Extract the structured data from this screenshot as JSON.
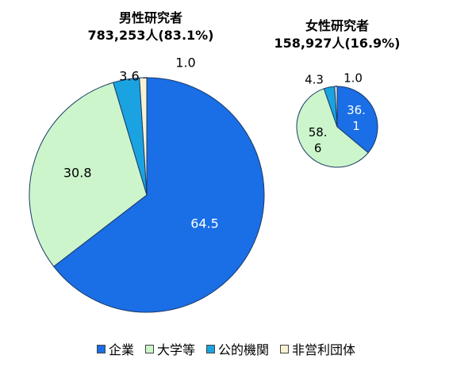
{
  "chart_data": [
    {
      "type": "pie",
      "title": "男性研究者",
      "subtitle": "783,253人(83.1%)",
      "categories": [
        "企業",
        "大学等",
        "公的機関",
        "非営利団体"
      ],
      "values": [
        64.5,
        30.8,
        3.6,
        1.0
      ],
      "labels": [
        "64.5",
        "30.8",
        "3.6",
        "1.0"
      ],
      "start": "top",
      "direction": "clockwise"
    },
    {
      "type": "pie",
      "title": "女性研究者",
      "subtitle": "158,927人(16.9%)",
      "categories": [
        "企業",
        "大学等",
        "公的機関",
        "非営利団体"
      ],
      "values": [
        36.1,
        58.6,
        4.3,
        1.0
      ],
      "labels": [
        "36.\n1",
        "58.\n6",
        "4.3",
        "1.0"
      ],
      "start": "top",
      "direction": "clockwise"
    }
  ],
  "legend": {
    "placement": "bottom",
    "items": [
      {
        "label": "企業",
        "color": "#1a6ee6"
      },
      {
        "label": "大学等",
        "color": "#ccf5cc"
      },
      {
        "label": "公的機関",
        "color": "#1aa3e0"
      },
      {
        "label": "非営利団体",
        "color": "#f7f2d2"
      }
    ]
  },
  "colors": {
    "slice_stroke": "#1a3a66",
    "company_label": "#ffffff",
    "other_label": "#000000"
  }
}
